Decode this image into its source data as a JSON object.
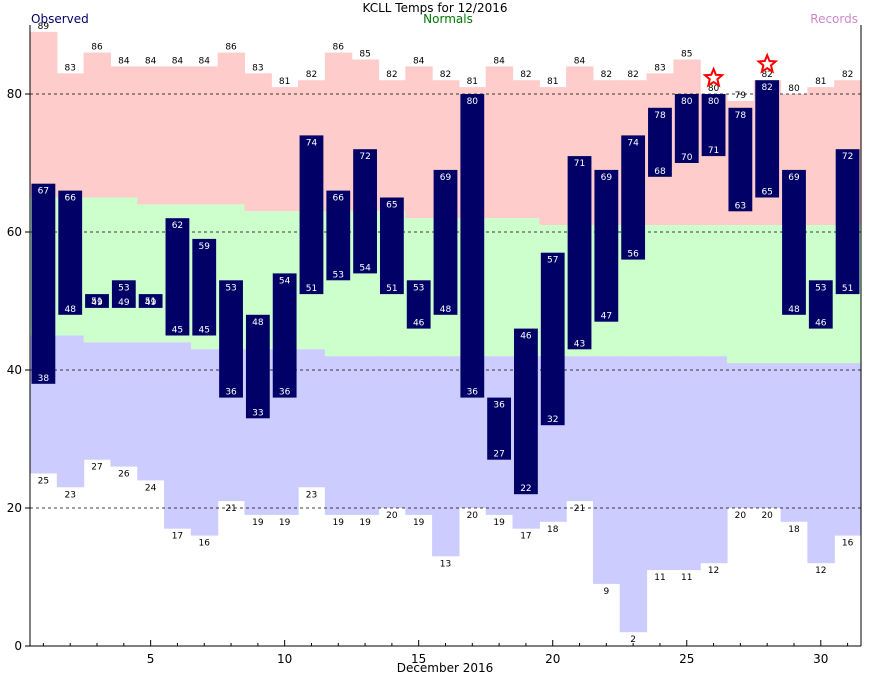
{
  "chart_data": {
    "type": "bar",
    "title": "KCLL Temps for 12/2016",
    "legend": [
      "Observed",
      "Normals",
      "Records"
    ],
    "xlabel": "December 2016",
    "ylabel": "",
    "xlim": [
      1,
      31
    ],
    "ylim": [
      0,
      90
    ],
    "grid": true,
    "x_ticks": [
      5,
      10,
      15,
      20,
      25,
      30
    ],
    "y_ticks": [
      0,
      20,
      40,
      60,
      80
    ],
    "colors": {
      "observed": "#000066",
      "observed_text": "#ffffff",
      "record_band": "#ffcccc",
      "record_low_band": "#ccccff",
      "normal_band": "#ccffcc",
      "normals_title": "#007700",
      "records_title": "#cc88cc",
      "star": "#ff0000"
    },
    "days": [
      1,
      2,
      3,
      4,
      5,
      6,
      7,
      8,
      9,
      10,
      11,
      12,
      13,
      14,
      15,
      16,
      17,
      18,
      19,
      20,
      21,
      22,
      23,
      24,
      25,
      26,
      27,
      28,
      29,
      30,
      31
    ],
    "observed_high": [
      67,
      66,
      51,
      53,
      51,
      62,
      59,
      53,
      48,
      54,
      74,
      66,
      72,
      65,
      53,
      69,
      80,
      36,
      46,
      57,
      71,
      69,
      74,
      78,
      80,
      80,
      78,
      82,
      69,
      53,
      72
    ],
    "observed_low": [
      38,
      48,
      49,
      49,
      49,
      45,
      45,
      36,
      33,
      36,
      51,
      53,
      54,
      51,
      46,
      48,
      36,
      27,
      22,
      32,
      43,
      47,
      56,
      68,
      70,
      71,
      63,
      65,
      48,
      46,
      51
    ],
    "record_high": [
      89,
      83,
      86,
      84,
      84,
      84,
      84,
      86,
      83,
      81,
      82,
      86,
      85,
      82,
      84,
      82,
      81,
      84,
      82,
      81,
      84,
      82,
      82,
      83,
      85,
      80,
      79,
      82,
      80,
      81,
      82
    ],
    "record_low": [
      25,
      23,
      27,
      26,
      24,
      17,
      16,
      21,
      19,
      19,
      23,
      19,
      19,
      20,
      19,
      13,
      20,
      19,
      17,
      18,
      21,
      9,
      2,
      11,
      11,
      12,
      20,
      20,
      18,
      12,
      16
    ],
    "normal_high": [
      65,
      65,
      65,
      65,
      64,
      64,
      64,
      64,
      63,
      63,
      63,
      63,
      63,
      63,
      62,
      62,
      62,
      62,
      62,
      61,
      61,
      61,
      61,
      61,
      61,
      61,
      61,
      61,
      61,
      61,
      61
    ],
    "normal_low": [
      45,
      45,
      44,
      44,
      44,
      44,
      43,
      43,
      43,
      43,
      43,
      42,
      42,
      42,
      42,
      42,
      42,
      42,
      42,
      42,
      42,
      42,
      42,
      42,
      42,
      42,
      41,
      41,
      41,
      41,
      41
    ],
    "record_set_days": [
      26,
      28
    ]
  }
}
